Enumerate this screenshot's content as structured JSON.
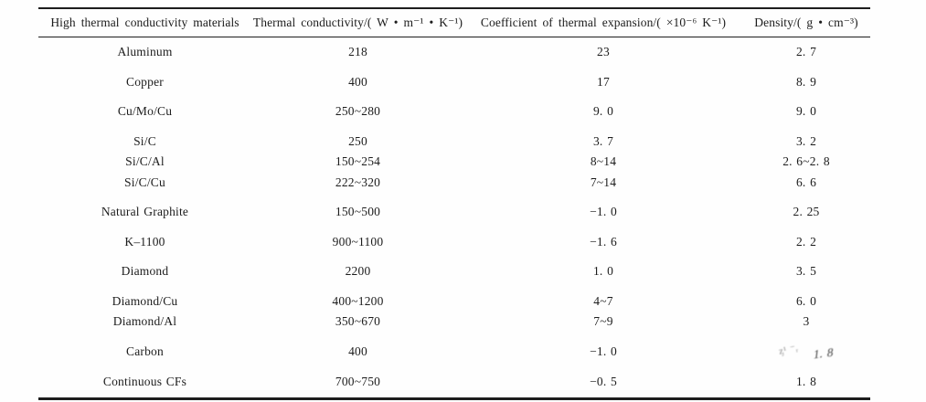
{
  "table": {
    "columns": [
      {
        "label": "High thermal conductivity materials"
      },
      {
        "label": "Thermal conductivity/( W • m⁻¹ • K⁻¹)"
      },
      {
        "label": "Coefficient of thermal expansion/( ×10⁻⁶ K⁻¹)"
      },
      {
        "label": "Density/( g • cm⁻³)"
      }
    ],
    "groups": [
      [
        {
          "material": "Aluminum",
          "conductivity": "218",
          "expansion": "23",
          "density": "2. 7"
        }
      ],
      [
        {
          "material": "Copper",
          "conductivity": "400",
          "expansion": "17",
          "density": "8. 9"
        }
      ],
      [
        {
          "material": "Cu/Mo/Cu",
          "conductivity": "250~280",
          "expansion": "9. 0",
          "density": "9. 0"
        }
      ],
      [
        {
          "material": "Si/C",
          "conductivity": "250",
          "expansion": "3. 7",
          "density": "3. 2"
        },
        {
          "material": "Si/C/Al",
          "conductivity": "150~254",
          "expansion": "8~14",
          "density": "2. 6~2. 8"
        },
        {
          "material": "Si/C/Cu",
          "conductivity": "222~320",
          "expansion": "7~14",
          "density": "6. 6"
        }
      ],
      [
        {
          "material": "Natural Graphite",
          "conductivity": "150~500",
          "expansion": "−1. 0",
          "density": "2. 25"
        }
      ],
      [
        {
          "material": "K–1100",
          "conductivity": "900~1100",
          "expansion": "−1. 6",
          "density": "2. 2"
        }
      ],
      [
        {
          "material": "Diamond",
          "conductivity": "2200",
          "expansion": "1. 0",
          "density": "3. 5"
        }
      ],
      [
        {
          "material": "Diamond/Cu",
          "conductivity": "400~1200",
          "expansion": "4~7",
          "density": "6. 0"
        },
        {
          "material": "Diamond/Al",
          "conductivity": "350~670",
          "expansion": "7~9",
          "density": "3"
        }
      ],
      [
        {
          "material": "Carbon",
          "conductivity": "400",
          "expansion": "−1. 0",
          "density": "1. 8",
          "obscured": true
        }
      ],
      [
        {
          "material": "Continuous CFs",
          "conductivity": "700~750",
          "expansion": "−0. 5",
          "density": "1. 8"
        }
      ]
    ],
    "watermark_marks": "ᶎ¹ ⁻ᵣ"
  }
}
